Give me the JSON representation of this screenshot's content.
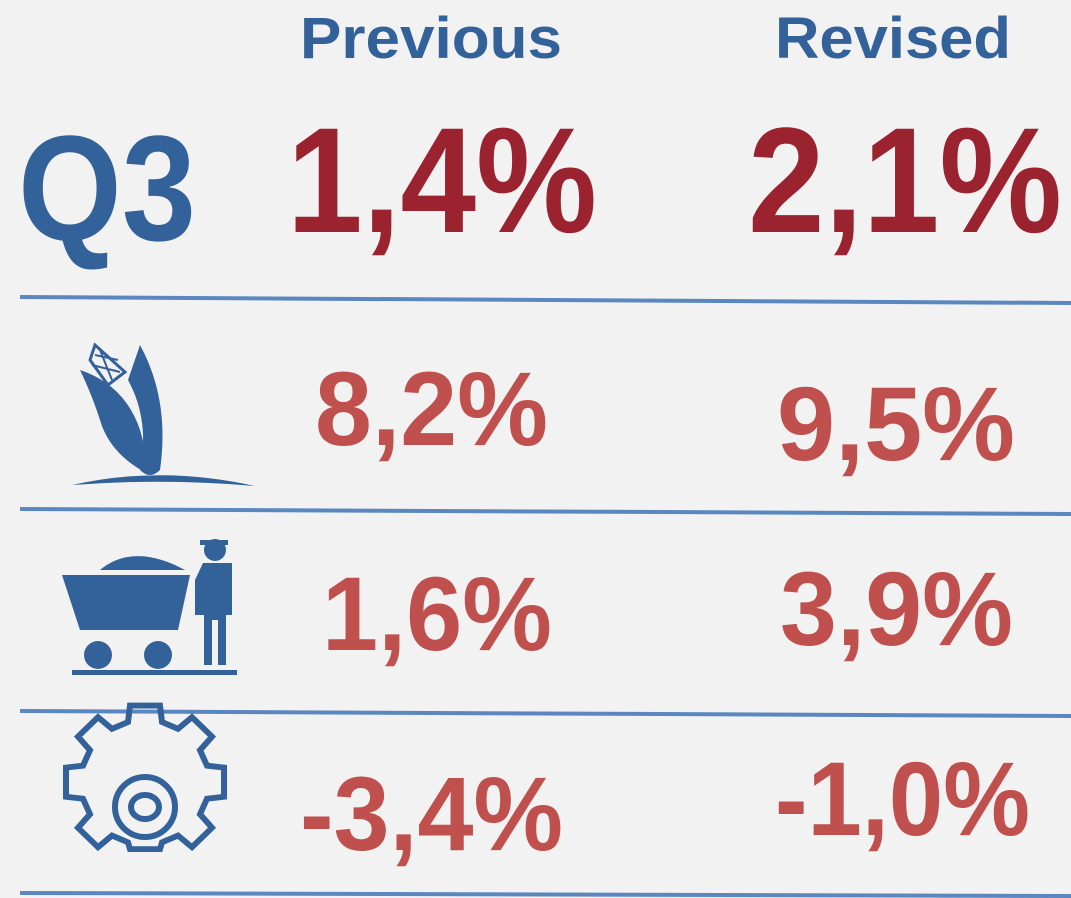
{
  "header": {
    "columns": [
      "Previous",
      "Revised"
    ]
  },
  "rows": [
    {
      "label": "Q3",
      "previous": "1,4%",
      "revised": "2,1%"
    },
    {
      "previous": "8,2%",
      "revised": "9,5%"
    },
    {
      "previous": "1,6%",
      "revised": "3,9%"
    },
    {
      "previous": "-3,4%",
      "revised": "-1,0%"
    }
  ]
}
